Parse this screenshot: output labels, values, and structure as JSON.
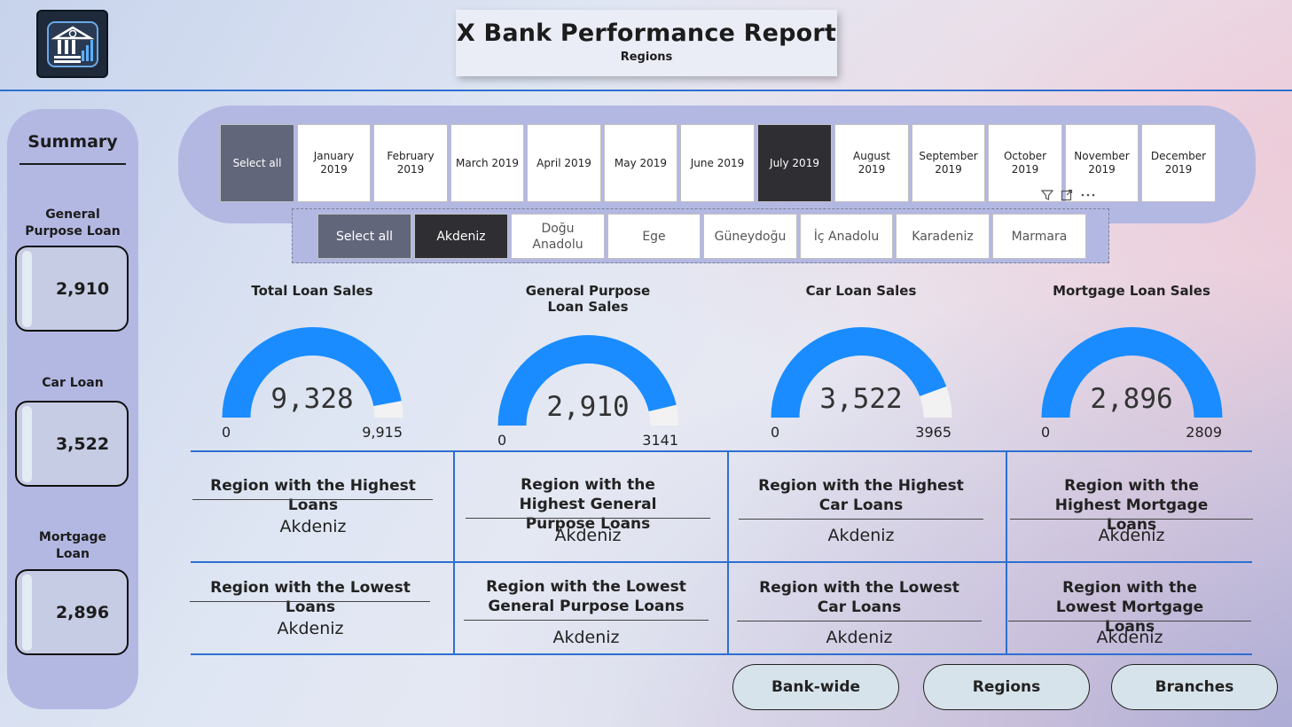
{
  "header": {
    "title": "X Bank Performance Report",
    "subtitle": "Regions",
    "logo_icon": "bank-icon"
  },
  "summary": {
    "title": "Summary",
    "items": [
      {
        "label": "General Purpose Loan",
        "value": "2,910"
      },
      {
        "label": "Car Loan",
        "value": "3,522"
      },
      {
        "label": "Mortgage Loan",
        "value": "2,896"
      }
    ]
  },
  "month_slicer": {
    "select_all": "Select all",
    "months": [
      "January 2019",
      "February 2019",
      "March 2019",
      "April 2019",
      "May 2019",
      "June 2019",
      "July 2019",
      "August 2019",
      "September 2019",
      "October 2019",
      "November 2019",
      "December 2019"
    ],
    "selected": "July 2019",
    "icons": [
      "filter-icon",
      "focus-mode-icon",
      "more-options-icon"
    ]
  },
  "region_slicer": {
    "select_all": "Select all",
    "regions": [
      "Akdeniz",
      "Doğu Anadolu",
      "Ege",
      "Güneydoğu",
      "İç Anadolu",
      "Karadeniz",
      "Marmara"
    ],
    "selected": "Akdeniz"
  },
  "gauges": [
    {
      "title": "Total Loan Sales",
      "value": "9,328",
      "min": "0",
      "max": "9,915",
      "fraction": 0.9408
    },
    {
      "title": "General Purpose Loan Sales",
      "value": "2,910",
      "min": "0",
      "max": "3141",
      "fraction": 0.9265
    },
    {
      "title": "Car Loan Sales",
      "value": "3,522",
      "min": "0",
      "max": "3965",
      "fraction": 0.8883
    },
    {
      "title": "Mortgage Loan Sales",
      "value": "2,896",
      "min": "0",
      "max": "2809",
      "fraction": 1.0
    }
  ],
  "gauge_colors": {
    "fill": "#1a8cff",
    "track": "#f2f2f2"
  },
  "highest": [
    {
      "title": "Region with the Highest Loans",
      "value": "Akdeniz"
    },
    {
      "title": "Region with the Highest General Purpose Loans",
      "value": "Akdeniz"
    },
    {
      "title": "Region with the Highest Car Loans",
      "value": "Akdeniz"
    },
    {
      "title": "Region with the Highest Mortgage Loans",
      "value": "Akdeniz"
    }
  ],
  "lowest": [
    {
      "title": "Region with the Lowest Loans",
      "value": "Akdeniz"
    },
    {
      "title": "Region with the Lowest General Purpose Loans",
      "value": "Akdeniz"
    },
    {
      "title": "Region with the Lowest Car Loans",
      "value": "Akdeniz"
    },
    {
      "title": "Region with the Lowest Mortgage Loans",
      "value": "Akdeniz"
    }
  ],
  "nav": {
    "bank_wide": "Bank-wide",
    "regions": "Regions",
    "branches": "Branches"
  }
}
